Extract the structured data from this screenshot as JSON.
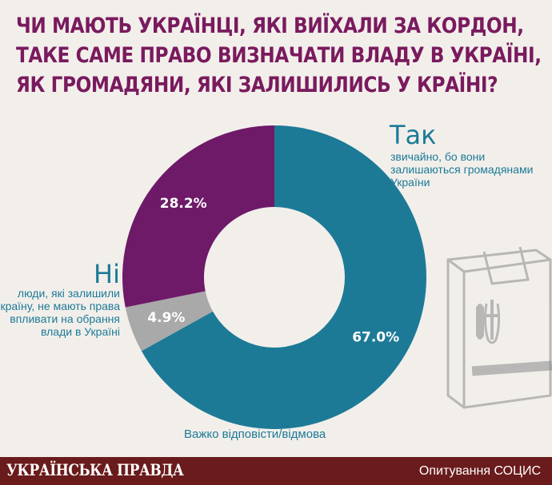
{
  "title_lines": [
    "ЧИ МАЮТЬ УКРАЇНЦІ, ЯКІ ВИЇХАЛИ ЗА КОРДОН,",
    "ТАКЕ САМЕ ПРАВО ВИЗНАЧАТИ ВЛАДУ В УКРАЇНІ,",
    "ЯК ГРОМАДЯНИ, ЯКІ ЗАЛИШИЛИСЬ У КРАЇНІ?"
  ],
  "answers": {
    "yes": {
      "title": "Так",
      "desc": "звичайно, бо вони залишаються громадянами України"
    },
    "no": {
      "title": "Ні",
      "desc": "люди, які залишили країну, не мають права впливати на обрання влади в Україні"
    },
    "dk": {
      "label": "Важко відповісти/відмова"
    }
  },
  "chart_data": {
    "type": "pie",
    "variant": "donut",
    "slices": [
      {
        "label": "Так",
        "value": 67.0,
        "display": "67.0%",
        "color": "#1d7a97"
      },
      {
        "label": "Важко відповісти/відмова",
        "value": 4.9,
        "display": "4.9%",
        "color": "#a9a9a9"
      },
      {
        "label": "Ні",
        "value": 28.2,
        "display": "28.2%",
        "color": "#6e1a68"
      }
    ],
    "start": "top",
    "direction": "clockwise"
  },
  "footer": {
    "logo": "УКРАЇНСЬКА ПРАВДА",
    "source": "Опитування СОЦИС"
  }
}
